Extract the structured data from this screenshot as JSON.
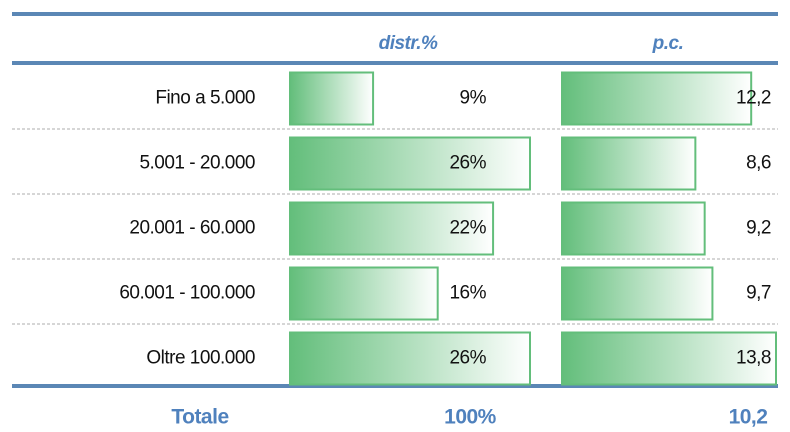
{
  "table": {
    "header": {
      "distr": "distr.%",
      "pc": "p.c."
    },
    "row_labels": [
      "Fino a 5.000",
      "5.001 - 20.000",
      "20.001 - 60.000",
      "60.001 - 100.000",
      "Oltre 100.000"
    ],
    "distr": {
      "values": [
        9,
        26,
        22,
        16,
        26
      ],
      "value_labels": [
        "9%",
        "26%",
        "22%",
        "16%",
        "26%"
      ]
    },
    "pc": {
      "values": [
        12.2,
        8.6,
        9.2,
        9.7,
        13.8
      ],
      "value_labels": [
        "12,2",
        "8,6",
        "9,2",
        "9,7",
        "13,8"
      ]
    },
    "total": {
      "label": "Totale",
      "distr": "100%",
      "pc": "10,2"
    }
  }
}
